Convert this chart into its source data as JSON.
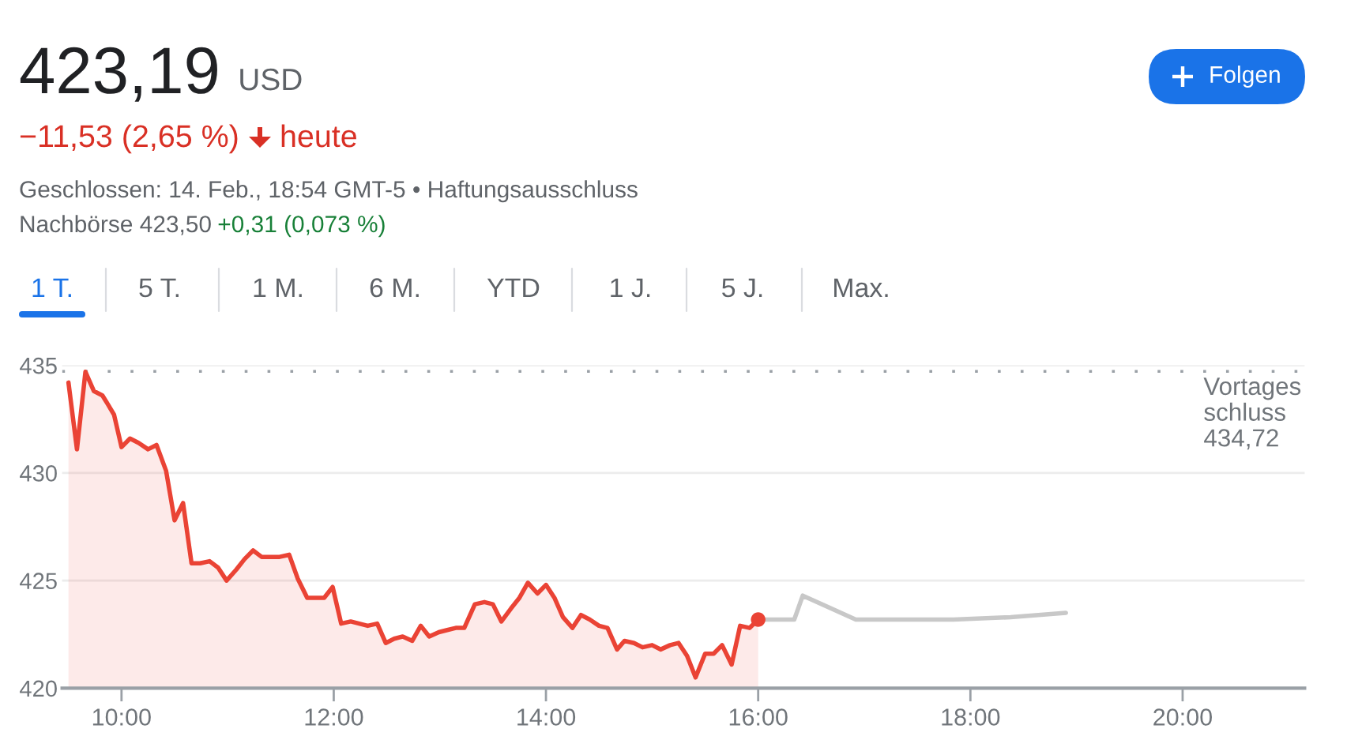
{
  "chart_data": {
    "type": "line",
    "title": "423,19",
    "subtitle": "−11,53 (2,65 %)",
    "annotations": [
      "USD",
      "heute",
      "Geschlossen: 14. Feb., 18:54 GMT-5 • Haftungsausschluss",
      "Nachbörse 423,50",
      "+0,31 (0,073 %)",
      "Folgen",
      "1 T.",
      "5 T.",
      "1 M.",
      "6 M.",
      "YTD",
      "1 J.",
      "5 J.",
      "Max."
    ],
    "xlim": [
      9.44,
      21.15
    ],
    "xticks": [
      {
        "value": 10,
        "label": "10:00"
      },
      {
        "value": 12,
        "label": "12:00"
      },
      {
        "value": 14,
        "label": "14:00"
      },
      {
        "value": 16,
        "label": "16:00"
      },
      {
        "value": 18,
        "label": "18:00"
      },
      {
        "value": 20,
        "label": "20:00"
      }
    ],
    "ylim": [
      420,
      435
    ],
    "yticks": [
      420,
      425,
      430,
      435
    ],
    "grid": "y",
    "ref_lines": [
      {
        "axis": "y",
        "value": 434.72,
        "label": "Vortages\nschluss\n434,72",
        "color": "#9aa0a6",
        "line_style": "dotted"
      }
    ],
    "series": [
      {
        "type": "area",
        "color": "#ea4335",
        "x": [
          9.5,
          9.58,
          9.66,
          9.74,
          9.82,
          9.87,
          9.93,
          10.0,
          10.08,
          10.16,
          10.25,
          10.33,
          10.42,
          10.5,
          10.58,
          10.66,
          10.74,
          10.83,
          10.91,
          10.99,
          11.08,
          11.16,
          11.24,
          11.32,
          11.41,
          11.49,
          11.58,
          11.66,
          11.75,
          11.83,
          11.91,
          11.99,
          12.07,
          12.16,
          12.24,
          12.32,
          12.41,
          12.49,
          12.57,
          12.65,
          12.74,
          12.82,
          12.9,
          12.99,
          13.07,
          13.15,
          13.23,
          13.33,
          13.42,
          13.5,
          13.58,
          13.67,
          13.75,
          13.83,
          13.92,
          14.0,
          14.08,
          14.16,
          14.25,
          14.33,
          14.41,
          14.5,
          14.58,
          14.67,
          14.74,
          14.83,
          14.91,
          15.0,
          15.08,
          15.17,
          15.25,
          15.33,
          15.41,
          15.5,
          15.58,
          15.66,
          15.75,
          15.83,
          15.92,
          16.0
        ],
        "values": [
          434.2,
          431.1,
          434.7,
          433.8,
          433.6,
          433.2,
          432.7,
          431.2,
          431.6,
          431.4,
          431.1,
          431.3,
          430.1,
          427.8,
          428.6,
          425.8,
          425.8,
          425.9,
          425.6,
          425.0,
          425.5,
          426.0,
          426.4,
          426.1,
          426.1,
          426.1,
          426.2,
          425.1,
          424.2,
          424.2,
          424.2,
          424.7,
          423.0,
          423.1,
          423.0,
          422.9,
          423.0,
          422.1,
          422.3,
          422.4,
          422.2,
          422.9,
          422.4,
          422.6,
          422.7,
          422.8,
          422.8,
          423.9,
          424.0,
          423.9,
          423.1,
          423.7,
          424.2,
          424.9,
          424.4,
          424.8,
          424.2,
          423.3,
          422.8,
          423.4,
          423.2,
          422.9,
          422.8,
          421.8,
          422.2,
          422.1,
          421.9,
          422.0,
          421.8,
          422.0,
          422.1,
          421.5,
          420.5,
          421.6,
          421.6,
          422.0,
          421.1,
          422.9,
          422.8,
          423.19
        ]
      },
      {
        "color": "#c8c8c8",
        "x": [
          16.0,
          16.34,
          16.42,
          16.92,
          17.84,
          18.38,
          18.9
        ],
        "values": [
          423.19,
          423.19,
          424.3,
          423.19,
          423.19,
          423.3,
          423.5
        ]
      },
      {
        "type": "scatter",
        "color": "#ea4335",
        "x": [
          16.0
        ],
        "values": [
          423.19
        ]
      }
    ]
  }
}
